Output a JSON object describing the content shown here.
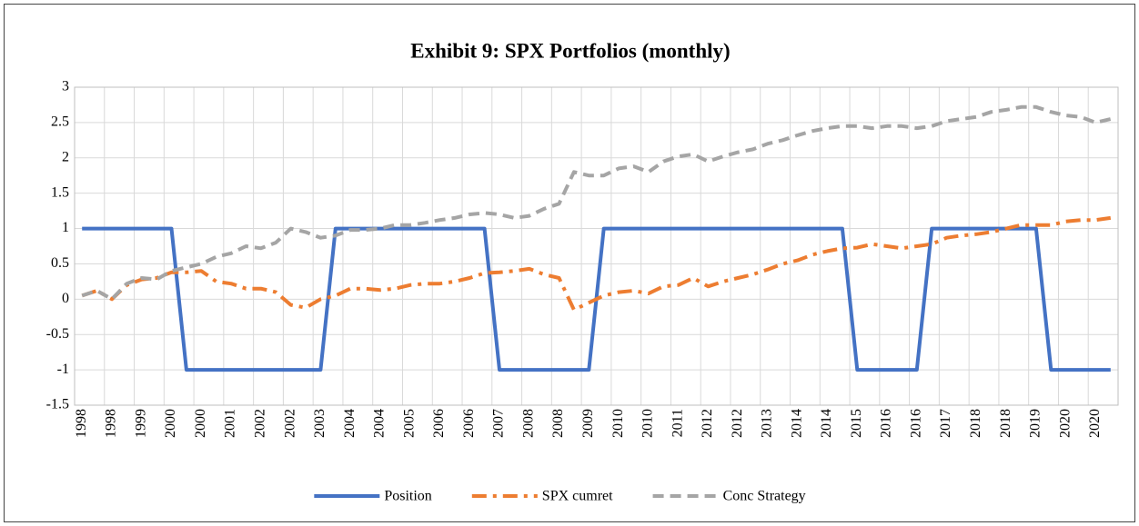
{
  "chart_data": {
    "type": "line",
    "title": "Exhibit 9: SPX Portfolios (monthly)",
    "categories": [
      "1998",
      null,
      "1998",
      null,
      "1999",
      null,
      "2000",
      null,
      "2000",
      null,
      "2001",
      null,
      "2002",
      null,
      "2002",
      null,
      "2003",
      null,
      "2004",
      null,
      "2004",
      null,
      "2005",
      null,
      "2006",
      null,
      "2006",
      null,
      "2007",
      null,
      "2008",
      null,
      "2008",
      null,
      "2009",
      null,
      "2010",
      null,
      "2010",
      null,
      "2011",
      null,
      "2012",
      null,
      "2012",
      null,
      "2013",
      null,
      "2014",
      null,
      "2014",
      null,
      "2015",
      null,
      "2016",
      null,
      "2016",
      null,
      "2017",
      null,
      "2018",
      null,
      "2018",
      null,
      "2019",
      null,
      "2020",
      null,
      "2020",
      null
    ],
    "series": [
      {
        "name": "Position",
        "color": "#4472c4",
        "values": [
          1,
          1,
          1,
          1,
          1,
          1,
          1,
          -1,
          -1,
          -1,
          -1,
          -1,
          -1,
          -1,
          -1,
          -1,
          -1,
          1,
          1,
          1,
          1,
          1,
          1,
          1,
          1,
          1,
          1,
          1,
          -1,
          -1,
          -1,
          -1,
          -1,
          -1,
          -1,
          1,
          1,
          1,
          1,
          1,
          1,
          1,
          1,
          1,
          1,
          1,
          1,
          1,
          1,
          1,
          1,
          1,
          -1,
          -1,
          -1,
          -1,
          -1,
          1,
          1,
          1,
          1,
          1,
          1,
          1,
          1,
          -1,
          -1,
          -1,
          -1,
          -1
        ]
      },
      {
        "name": "SPX cumret",
        "color": "#ed7d31",
        "values": [
          0.05,
          0.12,
          0.0,
          0.2,
          0.28,
          0.3,
          0.38,
          0.38,
          0.4,
          0.25,
          0.22,
          0.15,
          0.15,
          0.1,
          -0.08,
          -0.12,
          0.0,
          0.05,
          0.15,
          0.15,
          0.13,
          0.15,
          0.2,
          0.22,
          0.22,
          0.25,
          0.3,
          0.37,
          0.38,
          0.4,
          0.43,
          0.35,
          0.3,
          -0.15,
          -0.05,
          0.05,
          0.1,
          0.12,
          0.08,
          0.18,
          0.2,
          0.3,
          0.18,
          0.25,
          0.3,
          0.35,
          0.42,
          0.5,
          0.55,
          0.63,
          0.68,
          0.72,
          0.73,
          0.78,
          0.75,
          0.72,
          0.75,
          0.78,
          0.87,
          0.9,
          0.92,
          0.95,
          1.0,
          1.05,
          1.05,
          1.05,
          1.1,
          1.12,
          1.12,
          1.15
        ]
      },
      {
        "name": "Conc Strategy",
        "color": "#a5a5a5",
        "values": [
          0.05,
          0.12,
          0.0,
          0.22,
          0.3,
          0.28,
          0.4,
          0.45,
          0.5,
          0.6,
          0.65,
          0.75,
          0.72,
          0.8,
          1.0,
          0.95,
          0.87,
          0.9,
          0.98,
          0.98,
          1.0,
          1.05,
          1.05,
          1.08,
          1.12,
          1.15,
          1.2,
          1.22,
          1.2,
          1.15,
          1.18,
          1.28,
          1.35,
          1.8,
          1.75,
          1.75,
          1.85,
          1.88,
          1.8,
          1.95,
          2.02,
          2.05,
          1.95,
          2.02,
          2.08,
          2.12,
          2.2,
          2.25,
          2.32,
          2.38,
          2.42,
          2.45,
          2.45,
          2.42,
          2.45,
          2.45,
          2.42,
          2.45,
          2.52,
          2.55,
          2.58,
          2.65,
          2.68,
          2.72,
          2.72,
          2.65,
          2.6,
          2.58,
          2.5,
          2.55
        ]
      }
    ],
    "ylim": [
      -1.5,
      3
    ],
    "yticks": [
      -1.5,
      -1,
      -0.5,
      0,
      0.5,
      1,
      1.5,
      2,
      2.5,
      3
    ],
    "grid": true,
    "legend": "bottom"
  }
}
